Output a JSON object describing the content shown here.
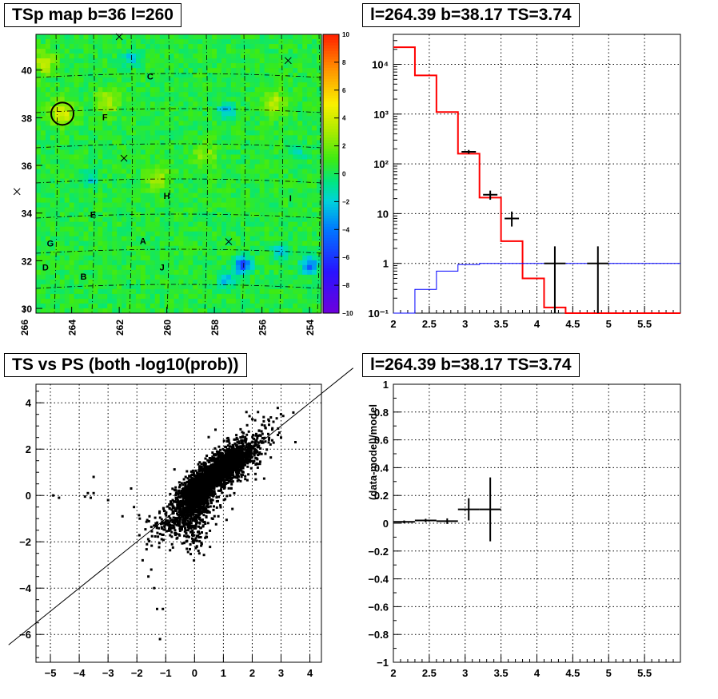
{
  "chart_data": [
    {
      "type": "heatmap",
      "title": "TSp map b=36 l=260",
      "x_ticks": [
        "266",
        "264",
        "262",
        "260",
        "258",
        "256",
        "254"
      ],
      "y_ticks": [
        "30",
        "32",
        "34",
        "36",
        "38",
        "40"
      ],
      "xlim": [
        265.5,
        253.5
      ],
      "ylim": [
        29.8,
        41.5
      ],
      "colorbar": {
        "range": [
          -10,
          10
        ],
        "ticks": [
          "10",
          "8",
          "6",
          "4",
          "2",
          "0",
          "−2",
          "−4",
          "−6",
          "−8",
          "−10"
        ]
      },
      "source_labels": [
        {
          "text": "C",
          "l": 260.7,
          "b": 39.6
        },
        {
          "text": "F",
          "l": 262.6,
          "b": 37.9
        },
        {
          "text": "H",
          "l": 260.0,
          "b": 34.6
        },
        {
          "text": "I",
          "l": 254.8,
          "b": 34.5
        },
        {
          "text": "E",
          "l": 263.1,
          "b": 33.8
        },
        {
          "text": "G",
          "l": 264.9,
          "b": 32.6
        },
        {
          "text": "A",
          "l": 261.0,
          "b": 32.7
        },
        {
          "text": "D",
          "l": 265.1,
          "b": 31.6
        },
        {
          "text": "B",
          "l": 263.5,
          "b": 31.2
        },
        {
          "text": "J",
          "l": 260.2,
          "b": 31.6
        }
      ],
      "markers": [
        {
          "l": 262.0,
          "b": 41.4
        },
        {
          "l": 254.9,
          "b": 40.4
        },
        {
          "l": 261.8,
          "b": 36.3
        },
        {
          "l": 257.4,
          "b": 32.8
        },
        {
          "l": 266.3,
          "b": 34.9
        }
      ],
      "highlight_circle": {
        "l": 264.39,
        "b": 38.17
      },
      "hotspots": [
        {
          "l": 264.4,
          "b": 38.2,
          "v": 4
        },
        {
          "l": 262.5,
          "b": 38.7,
          "v": 3
        },
        {
          "l": 255.5,
          "b": 38.6,
          "v": 3
        },
        {
          "l": 260.4,
          "b": 35.5,
          "v": 2.5
        },
        {
          "l": 265.2,
          "b": 40.3,
          "v": 3
        },
        {
          "l": 258.4,
          "b": 36.4,
          "v": 2
        }
      ],
      "coldspots": [
        {
          "l": 256.8,
          "b": 31.8,
          "v": -6
        },
        {
          "l": 254.0,
          "b": 31.8,
          "v": -5
        },
        {
          "l": 257.5,
          "b": 31.2,
          "v": -3
        },
        {
          "l": 255.2,
          "b": 32.4,
          "v": -3
        },
        {
          "l": 257.5,
          "b": 38.3,
          "v": -3
        },
        {
          "l": 261.5,
          "b": 40.5,
          "v": -2.5
        },
        {
          "l": 263.2,
          "b": 35.4,
          "v": -2
        },
        {
          "l": 254.5,
          "b": 36.5,
          "v": -2
        }
      ]
    },
    {
      "type": "line",
      "title": "l=264.39 b=38.17 TS=3.74",
      "log_y": true,
      "xlim": [
        2,
        6
      ],
      "ylim": [
        0.1,
        40000
      ],
      "x_ticks": [
        "2",
        "2.5",
        "3",
        "3.5",
        "4",
        "4.5",
        "5",
        "5.5"
      ],
      "y_ticks": [
        "10⁻¹",
        "1",
        "10",
        "10²",
        "10³",
        "10⁴"
      ],
      "series": [
        {
          "color": "#ff0000",
          "style": "step",
          "edges": [
            2.0,
            2.3,
            2.6,
            2.9,
            3.2,
            3.5,
            3.8,
            4.1,
            4.4,
            6.0
          ],
          "values": [
            22000,
            6000,
            1100,
            160,
            21,
            2.8,
            0.5,
            0.13,
            0.1
          ]
        },
        {
          "color": "#0000ff",
          "style": "step",
          "edges": [
            2.0,
            2.3,
            2.6,
            2.9,
            3.2,
            6.0
          ],
          "values": [
            0.1,
            0.3,
            0.7,
            0.95,
            1.0
          ]
        }
      ],
      "data_points": [
        {
          "x": 3.05,
          "xerr": 0.1,
          "y": 175,
          "ylo": 160,
          "yhi": 190
        },
        {
          "x": 3.35,
          "xerr": 0.1,
          "y": 24,
          "ylo": 19,
          "yhi": 29
        },
        {
          "x": 3.65,
          "xerr": 0.1,
          "y": 8,
          "ylo": 5.5,
          "yhi": 11
        },
        {
          "x": 4.25,
          "xerr": 0.15,
          "y": 1,
          "ylo": 0.1,
          "yhi": 2.2
        },
        {
          "x": 4.85,
          "xerr": 0.15,
          "y": 1,
          "ylo": 0.1,
          "yhi": 2.2
        }
      ]
    },
    {
      "type": "scatter",
      "title": "TS vs PS (both -log10(prob))",
      "xlim": [
        -5.5,
        4.4
      ],
      "ylim": [
        -7.2,
        4.8
      ],
      "x_ticks": [
        "−5",
        "−4",
        "−3",
        "−2",
        "−1",
        "0",
        "1",
        "2",
        "3",
        "4"
      ],
      "y_ticks": [
        "−6",
        "−4",
        "−2",
        "0",
        "2",
        "4"
      ],
      "reference_line": {
        "slope": 1,
        "intercept": 0
      },
      "clusters": [
        {
          "n": 900,
          "cx": 0.0,
          "cy": 0.0,
          "sx": 0.28,
          "sy": 0.4,
          "rho": 0.35
        },
        {
          "n": 1800,
          "cx": 0.9,
          "cy": 1.1,
          "sx": 0.55,
          "sy": 0.55,
          "rho": 0.75
        },
        {
          "n": 350,
          "cx": -0.4,
          "cy": -0.9,
          "sx": 0.55,
          "sy": 0.6,
          "rho": 0.5
        },
        {
          "n": 200,
          "cx": 1.5,
          "cy": 1.6,
          "sx": 0.7,
          "sy": 0.8,
          "rho": 0.6
        },
        {
          "n": 120,
          "cx": 0.0,
          "cy": -1.5,
          "sx": 0.25,
          "sy": 0.5,
          "rho": 0.0
        }
      ],
      "outliers": [
        [
          -4.9,
          0.0
        ],
        [
          -4.7,
          -0.1
        ],
        [
          -3.5,
          0.1
        ],
        [
          -3.6,
          -0.1
        ],
        [
          -3.7,
          0.1
        ],
        [
          -3.8,
          -0.05
        ],
        [
          -3.0,
          -0.2
        ],
        [
          -3.5,
          0.8
        ],
        [
          -2.2,
          0.3
        ],
        [
          -1.9,
          -1.0
        ],
        [
          -1.3,
          -4.9
        ],
        [
          -1.1,
          -4.9
        ],
        [
          -1.2,
          -6.2
        ],
        [
          -1.6,
          -3.5
        ],
        [
          -1.4,
          -4.0
        ],
        [
          -1.8,
          -2.8
        ],
        [
          -1.5,
          -3.2
        ],
        [
          3.5,
          2.3
        ],
        [
          2.7,
          2.9
        ],
        [
          3.0,
          2.5
        ],
        [
          2.2,
          3.6
        ],
        [
          2.4,
          3.2
        ],
        [
          1.8,
          3.6
        ],
        [
          -2.5,
          -0.9
        ],
        [
          -2.1,
          -0.5
        ]
      ]
    },
    {
      "type": "line",
      "title": "l=264.39 b=38.17 TS=3.74",
      "ylabel": "(data-model)/model",
      "xlim": [
        2,
        6
      ],
      "ylim": [
        -1,
        1
      ],
      "x_ticks": [
        "2",
        "2.5",
        "3",
        "3.5",
        "4",
        "4.5",
        "5",
        "5.5"
      ],
      "y_ticks": [
        "−1",
        "−0.8",
        "−0.6",
        "−0.4",
        "−0.2",
        "0",
        "0.2",
        "0.4",
        "0.6",
        "0.8",
        "1"
      ],
      "data_points": [
        {
          "x": 2.15,
          "xerr": 0.15,
          "y": 0.01,
          "yerr": 0.01
        },
        {
          "x": 2.45,
          "xerr": 0.15,
          "y": 0.02,
          "yerr": 0.012
        },
        {
          "x": 2.75,
          "xerr": 0.15,
          "y": 0.015,
          "yerr": 0.02
        },
        {
          "x": 3.05,
          "xerr": 0.15,
          "y": 0.1,
          "yerr": 0.08
        },
        {
          "x": 3.35,
          "xerr": 0.15,
          "y": 0.1,
          "yerr": 0.23
        }
      ]
    }
  ]
}
